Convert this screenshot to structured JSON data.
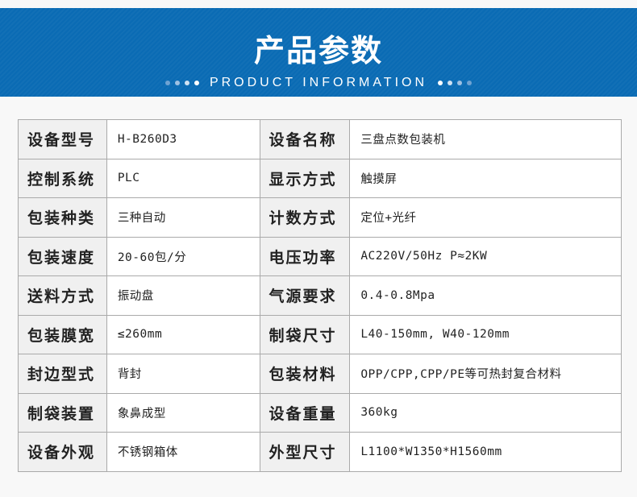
{
  "header": {
    "title": "产品参数",
    "subtitle": "PRODUCT INFORMATION",
    "accent": "#0a6bb4"
  },
  "rows": [
    {
      "l1": "设备型号",
      "v1": "H-B260D3",
      "l2": "设备名称",
      "v2": "三盘点数包装机"
    },
    {
      "l1": "控制系统",
      "v1": "PLC",
      "l2": "显示方式",
      "v2": "触摸屏"
    },
    {
      "l1": "包装种类",
      "v1": "三种自动",
      "l2": "计数方式",
      "v2": "定位+光纤"
    },
    {
      "l1": "包装速度",
      "v1": "20-60包/分",
      "l2": "电压功率",
      "v2": "AC220V/50Hz  P≈2KW"
    },
    {
      "l1": "送料方式",
      "v1": "振动盘",
      "l2": "气源要求",
      "v2": "0.4-0.8Mpa"
    },
    {
      "l1": "包装膜宽",
      "v1": "≤260mm",
      "l2": "制袋尺寸",
      "v2": "L40-150mm, W40-120mm"
    },
    {
      "l1": "封边型式",
      "v1": "背封",
      "l2": "包装材料",
      "v2": "OPP/CPP,CPP/PE等可热封复合材料"
    },
    {
      "l1": "制袋装置",
      "v1": "象鼻成型",
      "l2": "设备重量",
      "v2": "360kg"
    },
    {
      "l1": "设备外观",
      "v1": "不锈钢箱体",
      "l2": "外型尺寸",
      "v2": "L1100*W1350*H1560mm"
    }
  ]
}
